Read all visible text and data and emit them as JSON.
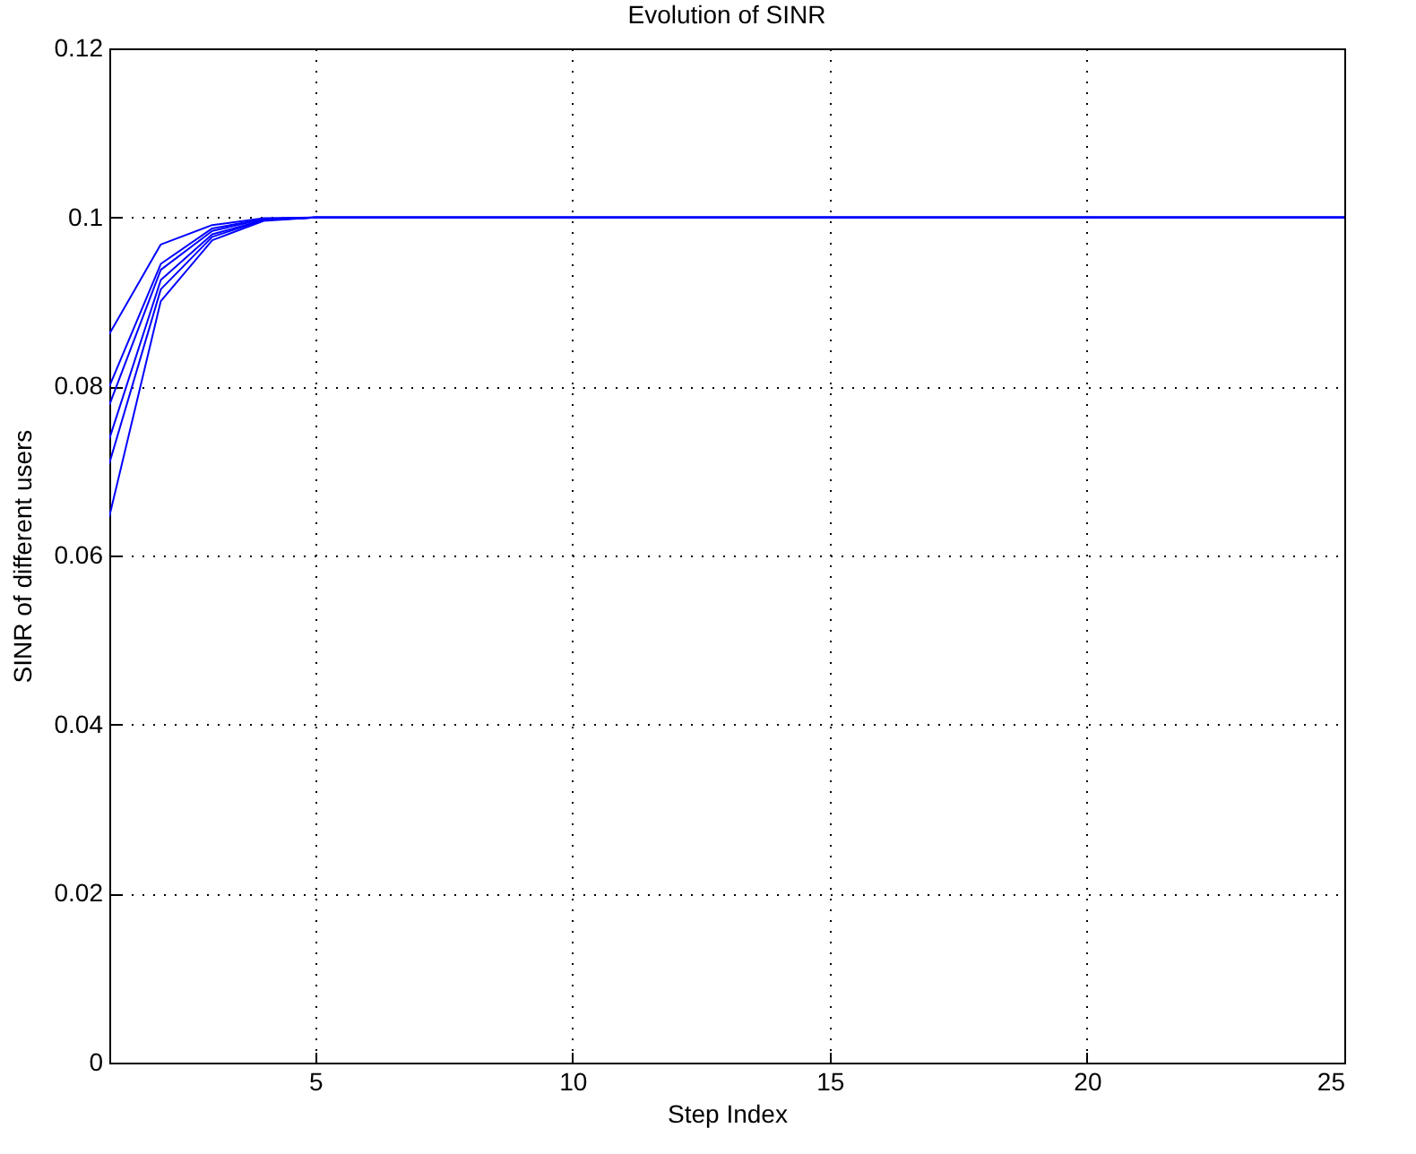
{
  "chart_data": {
    "type": "line",
    "title": "Evolution of SINR",
    "xlabel": "Step Index",
    "ylabel": "SINR of different users",
    "x": [
      1,
      2,
      3,
      4,
      5,
      6,
      7,
      8,
      9,
      10,
      11,
      12,
      13,
      14,
      15,
      16,
      17,
      18,
      19,
      20,
      21,
      22,
      23,
      24,
      25
    ],
    "series": [
      {
        "color": "#0000ff",
        "values": [
          0.0862,
          0.0968,
          0.0991,
          0.0999,
          0.1,
          0.1,
          0.1,
          0.1,
          0.1,
          0.1,
          0.1,
          0.1,
          0.1,
          0.1,
          0.1,
          0.1,
          0.1,
          0.1,
          0.1,
          0.1,
          0.1,
          0.1,
          0.1,
          0.1,
          0.1
        ]
      },
      {
        "color": "#0000ff",
        "values": [
          0.08,
          0.0945,
          0.0987,
          0.0998,
          0.1,
          0.1,
          0.1,
          0.1,
          0.1,
          0.1,
          0.1,
          0.1,
          0.1,
          0.1,
          0.1,
          0.1,
          0.1,
          0.1,
          0.1,
          0.1,
          0.1,
          0.1,
          0.1,
          0.1,
          0.1
        ]
      },
      {
        "color": "#0000ff",
        "values": [
          0.0778,
          0.0938,
          0.0984,
          0.0998,
          0.1,
          0.1,
          0.1,
          0.1,
          0.1,
          0.1,
          0.1,
          0.1,
          0.1,
          0.1,
          0.1,
          0.1,
          0.1,
          0.1,
          0.1,
          0.1,
          0.1,
          0.1,
          0.1,
          0.1,
          0.1
        ]
      },
      {
        "color": "#0000ff",
        "values": [
          0.0738,
          0.0926,
          0.098,
          0.0997,
          0.1,
          0.1,
          0.1,
          0.1,
          0.1,
          0.1,
          0.1,
          0.1,
          0.1,
          0.1,
          0.1,
          0.1,
          0.1,
          0.1,
          0.1,
          0.1,
          0.1,
          0.1,
          0.1,
          0.1,
          0.1
        ]
      },
      {
        "color": "#0000ff",
        "values": [
          0.0709,
          0.0915,
          0.0977,
          0.0997,
          0.1,
          0.1,
          0.1,
          0.1,
          0.1,
          0.1,
          0.1,
          0.1,
          0.1,
          0.1,
          0.1,
          0.1,
          0.1,
          0.1,
          0.1,
          0.1,
          0.1,
          0.1,
          0.1,
          0.1,
          0.1
        ]
      },
      {
        "color": "#0000ff",
        "values": [
          0.0646,
          0.0901,
          0.0973,
          0.0996,
          0.1,
          0.1,
          0.1,
          0.1,
          0.1,
          0.1,
          0.1,
          0.1,
          0.1,
          0.1,
          0.1,
          0.1,
          0.1,
          0.1,
          0.1,
          0.1,
          0.1,
          0.1,
          0.1,
          0.1,
          0.1
        ]
      }
    ],
    "xlim": [
      1,
      25
    ],
    "xticks": [
      5,
      10,
      15,
      20,
      25
    ],
    "ylim": [
      0,
      0.12
    ],
    "yticks": [
      0,
      0.02,
      0.04,
      0.06,
      0.08,
      0.1,
      0.12
    ],
    "grid": true,
    "line_style": "solid",
    "marker": "none",
    "legend": false
  }
}
